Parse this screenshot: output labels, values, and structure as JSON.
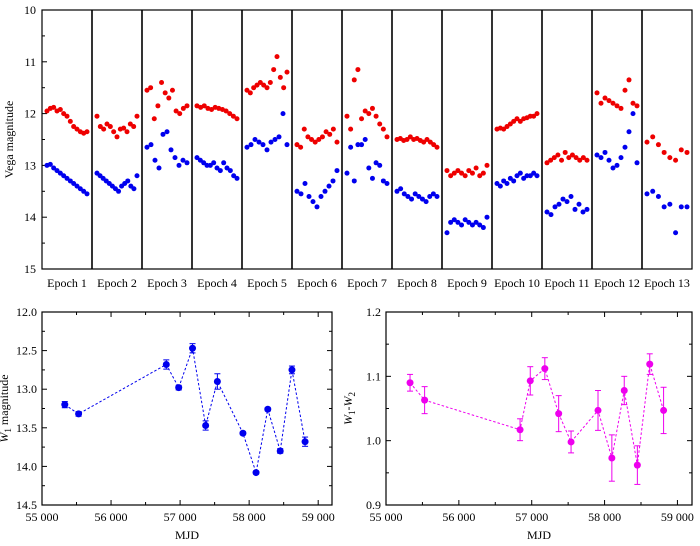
{
  "chart_data": [
    {
      "type": "scatter",
      "panel": "top",
      "title": "",
      "ylabel": "Vega magnitude",
      "ylim": [
        10,
        15
      ],
      "yticks": [
        10,
        11,
        12,
        13,
        14,
        15
      ],
      "y_inverted": true,
      "point_colors": {
        "W1": "#0000ee",
        "W2": "#ee0000"
      },
      "epochs": [
        {
          "label": "Epoch 1",
          "W2": [
            11.95,
            11.9,
            11.88,
            11.95,
            11.92,
            12.0,
            12.05,
            12.15,
            12.25,
            12.3,
            12.35,
            12.38,
            12.35
          ],
          "W1": [
            13.0,
            12.98,
            13.05,
            13.1,
            13.15,
            13.2,
            13.25,
            13.3,
            13.35,
            13.4,
            13.45,
            13.5,
            13.55
          ]
        },
        {
          "label": "Epoch 2",
          "W2": [
            12.05,
            12.25,
            12.3,
            12.2,
            12.25,
            12.35,
            12.45,
            12.3,
            12.28,
            12.35,
            12.2,
            12.25,
            12.05
          ],
          "W1": [
            13.15,
            13.2,
            13.25,
            13.3,
            13.35,
            13.4,
            13.45,
            13.5,
            13.4,
            13.35,
            13.3,
            13.4,
            13.45,
            13.2
          ]
        },
        {
          "label": "Epoch 3",
          "W2": [
            11.55,
            11.5,
            12.1,
            11.85,
            11.4,
            11.6,
            11.7,
            11.55,
            11.95,
            12.0,
            11.9,
            11.85
          ],
          "W1": [
            12.65,
            12.6,
            12.9,
            13.05,
            12.4,
            12.35,
            12.7,
            12.85,
            13.0,
            12.9,
            12.95
          ]
        },
        {
          "label": "Epoch 4",
          "W2": [
            11.85,
            11.88,
            11.85,
            11.9,
            11.92,
            11.88,
            11.9,
            11.92,
            11.95,
            12.0,
            12.05,
            12.1
          ],
          "W1": [
            12.85,
            12.9,
            12.95,
            13.0,
            13.0,
            12.95,
            13.05,
            13.1,
            12.95,
            13.05,
            13.1,
            13.2,
            13.25
          ]
        },
        {
          "label": "Epoch 5",
          "W2": [
            11.55,
            11.6,
            11.5,
            11.45,
            11.4,
            11.45,
            11.5,
            11.4,
            11.15,
            10.9,
            11.3,
            11.5,
            11.2
          ],
          "W1": [
            12.65,
            12.6,
            12.5,
            12.55,
            12.6,
            12.7,
            12.55,
            12.5,
            12.45,
            12.0,
            12.6
          ]
        },
        {
          "label": "Epoch 6",
          "W2": [
            12.6,
            12.65,
            12.3,
            12.45,
            12.5,
            12.55,
            12.5,
            12.45,
            12.35,
            12.4,
            12.3,
            12.55
          ],
          "W1": [
            13.5,
            13.55,
            13.35,
            13.6,
            13.7,
            13.8,
            13.6,
            13.5,
            13.4,
            13.3,
            13.1
          ]
        },
        {
          "label": "Epoch 7",
          "W2": [
            12.05,
            12.3,
            11.35,
            11.15,
            12.1,
            11.95,
            12.0,
            11.9,
            12.05,
            12.2,
            12.3,
            12.45
          ],
          "W1": [
            13.15,
            12.65,
            13.3,
            12.6,
            12.6,
            12.5,
            13.05,
            13.25,
            12.95,
            13.0,
            13.3,
            13.35
          ]
        },
        {
          "label": "Epoch 8",
          "W2": [
            12.5,
            12.48,
            12.52,
            12.5,
            12.45,
            12.5,
            12.48,
            12.52,
            12.55,
            12.5,
            12.55,
            12.6,
            12.65
          ],
          "W1": [
            13.5,
            13.45,
            13.55,
            13.6,
            13.65,
            13.55,
            13.6,
            13.65,
            13.7,
            13.6,
            13.55,
            13.6
          ]
        },
        {
          "label": "Epoch 9",
          "W2": [
            13.1,
            13.2,
            13.15,
            13.1,
            13.15,
            13.2,
            13.1,
            13.15,
            13.05,
            13.2,
            13.15,
            13.0
          ],
          "W1": [
            14.3,
            14.1,
            14.05,
            14.1,
            14.15,
            14.05,
            14.1,
            14.15,
            14.1,
            14.15,
            14.2,
            14.0
          ]
        },
        {
          "label": "Epoch 10",
          "W2": [
            12.3,
            12.28,
            12.3,
            12.25,
            12.2,
            12.15,
            12.1,
            12.15,
            12.1,
            12.08,
            12.05,
            12.05,
            12.0
          ],
          "W1": [
            13.35,
            13.4,
            13.3,
            13.35,
            13.25,
            13.3,
            13.2,
            13.15,
            13.25,
            13.2,
            13.2,
            13.15,
            13.2
          ]
        },
        {
          "label": "Epoch 11",
          "W2": [
            12.95,
            12.9,
            12.85,
            12.8,
            12.9,
            12.75,
            12.85,
            12.8,
            12.85,
            12.9,
            12.85,
            12.9
          ],
          "W1": [
            13.9,
            13.95,
            13.8,
            13.75,
            13.65,
            13.7,
            13.6,
            13.85,
            13.75,
            13.9,
            13.85
          ]
        },
        {
          "label": "Epoch 12",
          "W2": [
            11.6,
            11.8,
            11.7,
            11.75,
            11.8,
            11.85,
            11.9,
            11.55,
            11.35,
            11.8,
            11.85
          ],
          "W1": [
            12.8,
            12.85,
            12.75,
            12.9,
            13.05,
            13.0,
            12.85,
            12.65,
            12.35,
            12.0,
            12.95
          ]
        },
        {
          "label": "Epoch 13",
          "W2": [
            12.55,
            12.45,
            12.6,
            12.75,
            12.85,
            12.9,
            12.7,
            12.75
          ],
          "W1": [
            13.55,
            13.5,
            13.6,
            13.8,
            13.75,
            14.3,
            13.8,
            13.8
          ]
        }
      ]
    },
    {
      "type": "line",
      "panel": "bottom-left",
      "xlabel": "MJD",
      "ylabel_parts": [
        "W",
        "1",
        " magnitude"
      ],
      "xlim": [
        55000,
        59200
      ],
      "ylim": [
        12.0,
        14.5
      ],
      "y_inverted": true,
      "xticks": [
        55000,
        56000,
        57000,
        58000,
        59000
      ],
      "xtick_labels": [
        "55 000",
        "56 000",
        "57 000",
        "58 000",
        "59 000"
      ],
      "yticks": [
        12.0,
        12.5,
        13.0,
        13.5,
        14.0,
        14.5
      ],
      "ytick_labels": [
        "12.0",
        "12.5",
        "13.0",
        "13.5",
        "14.0",
        "14.5"
      ],
      "color": "#0000ee",
      "x": [
        55330,
        55530,
        56800,
        56980,
        57180,
        57370,
        57540,
        57910,
        58100,
        58270,
        58450,
        58620,
        58810
      ],
      "y": [
        13.2,
        13.32,
        12.68,
        12.98,
        12.47,
        13.47,
        12.9,
        13.57,
        14.08,
        13.26,
        13.8,
        12.75,
        13.68
      ],
      "yerr": [
        0.04,
        0.03,
        0.06,
        0.03,
        0.06,
        0.06,
        0.1,
        0.02,
        0.02,
        0.02,
        0.03,
        0.05,
        0.06
      ]
    },
    {
      "type": "line",
      "panel": "bottom-right",
      "xlabel": "MJD",
      "ylabel_parts": [
        "W",
        "1",
        "-",
        "W",
        "2"
      ],
      "xlim": [
        55000,
        59200
      ],
      "ylim": [
        0.9,
        1.2
      ],
      "xticks": [
        55000,
        56000,
        57000,
        58000,
        59000
      ],
      "xtick_labels": [
        "55 000",
        "56 000",
        "57 000",
        "58 000",
        "59 000"
      ],
      "yticks": [
        0.9,
        1.0,
        1.1,
        1.2
      ],
      "ytick_labels": [
        "0.9",
        "1.0",
        "1.1",
        "1.2"
      ],
      "color": "#ee00ee",
      "x": [
        55330,
        55530,
        56840,
        56980,
        57180,
        57370,
        57540,
        57910,
        58100,
        58270,
        58450,
        58620,
        58810
      ],
      "y": [
        1.09,
        1.063,
        1.017,
        1.093,
        1.112,
        1.042,
        0.998,
        1.047,
        0.973,
        1.078,
        0.962,
        1.119,
        1.047
      ],
      "yerr": [
        0.013,
        0.021,
        0.017,
        0.022,
        0.017,
        0.028,
        0.017,
        0.031,
        0.036,
        0.022,
        0.03,
        0.016,
        0.036
      ]
    }
  ]
}
